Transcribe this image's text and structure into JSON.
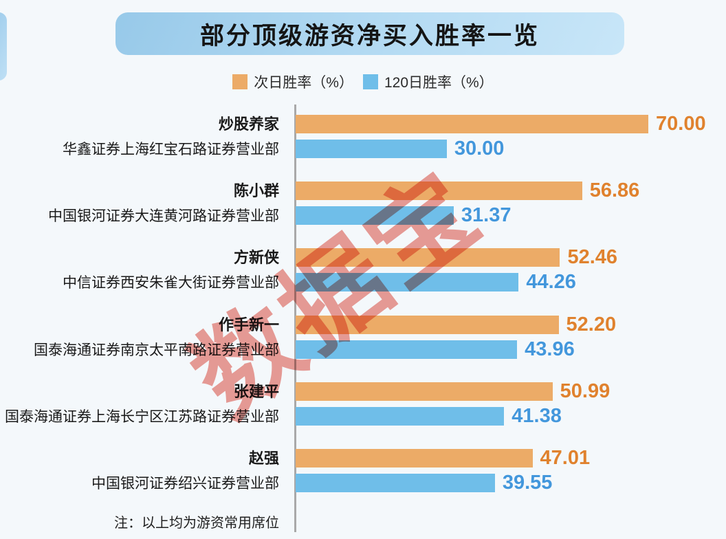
{
  "page": {
    "background": "#f4f8fb"
  },
  "header": {
    "title": "部分顶级游资净买入胜率一览"
  },
  "legend": {
    "items": [
      {
        "label": "次日胜率（%）",
        "color": "#ECAB67"
      },
      {
        "label": "120日胜率（%）",
        "color": "#6FBEE9"
      }
    ]
  },
  "watermark": {
    "text": "数据宝",
    "color": "#E03C2D"
  },
  "note": {
    "text": "注：以上均为游资常用席位"
  },
  "chart_data": {
    "type": "bar",
    "orientation": "horizontal",
    "title": "部分顶级游资净买入胜率一览",
    "xlim": [
      0,
      70
    ],
    "grid": false,
    "legend_position": "top",
    "value_format": "2dp",
    "categories": [
      {
        "name": "炒股养家",
        "branch": "华鑫证券上海红宝石路证券营业部"
      },
      {
        "name": "陈小群",
        "branch": "中国银河证券大连黄河路证券营业部"
      },
      {
        "name": "方新侠",
        "branch": "中信证券西安朱雀大街证券营业部"
      },
      {
        "name": "作手新一",
        "branch": "国泰海通证券南京太平南路证券营业部"
      },
      {
        "name": "张建平",
        "branch": "国泰海通证券上海长宁区江苏路证券营业部"
      },
      {
        "name": "赵强",
        "branch": "中国银河证券绍兴证券营业部"
      }
    ],
    "series": [
      {
        "name": "次日胜率（%）",
        "color": "#ECAB67",
        "label_color": "#E0822E",
        "values": [
          70.0,
          56.86,
          52.46,
          52.2,
          50.99,
          47.01
        ]
      },
      {
        "name": "120日胜率（%）",
        "color": "#6FBEE9",
        "label_color": "#4397DC",
        "values": [
          30.0,
          31.37,
          44.26,
          43.96,
          41.38,
          39.55
        ]
      }
    ]
  }
}
